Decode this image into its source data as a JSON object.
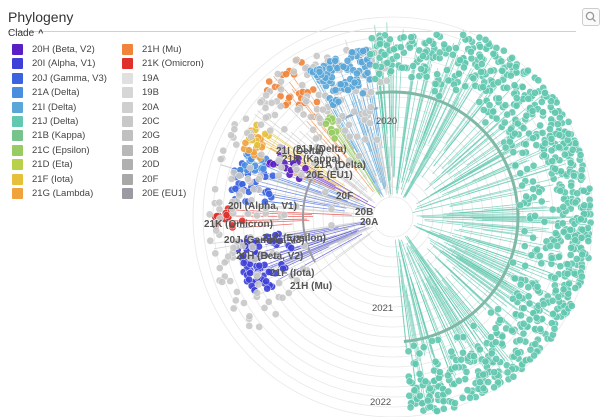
{
  "header": {
    "title": "Phylogeny"
  },
  "legend": {
    "toggle_label": "Clade",
    "items": [
      {
        "label": "20H (Beta, V2)",
        "color": "#5a1fc4"
      },
      {
        "label": "20I (Alpha, V1)",
        "color": "#3d3fd9"
      },
      {
        "label": "20J (Gamma, V3)",
        "color": "#3b63e0"
      },
      {
        "label": "21A (Delta)",
        "color": "#4a8ee0"
      },
      {
        "label": "21I (Delta)",
        "color": "#5aa6d8"
      },
      {
        "label": "21J (Delta)",
        "color": "#62c8b0"
      },
      {
        "label": "21B (Kappa)",
        "color": "#76c48b"
      },
      {
        "label": "21C (Epsilon)",
        "color": "#97cc62"
      },
      {
        "label": "21D (Eta)",
        "color": "#b8d04a"
      },
      {
        "label": "21F (Iota)",
        "color": "#e6c03b"
      },
      {
        "label": "21G (Lambda)",
        "color": "#f0a33d"
      },
      {
        "label": "21H (Mu)",
        "color": "#f0843a"
      },
      {
        "label": "21K (Omicron)",
        "color": "#e0302a"
      },
      {
        "label": "19A",
        "color": "#e0e0e0"
      },
      {
        "label": "19B",
        "color": "#d6d6d6"
      },
      {
        "label": "20A",
        "color": "#cfcfcf"
      },
      {
        "label": "20C",
        "color": "#c8c8c8"
      },
      {
        "label": "20G",
        "color": "#c0c0c0"
      },
      {
        "label": "20B",
        "color": "#b8b8b8"
      },
      {
        "label": "20D",
        "color": "#b0b0b0"
      },
      {
        "label": "20F",
        "color": "#a8a8a8"
      },
      {
        "label": "20E (EU1)",
        "color": "#9a9aa2"
      }
    ]
  },
  "tree": {
    "axis_labels": [
      {
        "text": "2020"
      },
      {
        "text": "2021"
      },
      {
        "text": "2022"
      }
    ],
    "clade_labels": [
      {
        "text": "21I (Delta)"
      },
      {
        "text": "21J (Delta)"
      },
      {
        "text": "21B (Kappa)"
      },
      {
        "text": "21A (Delta)"
      },
      {
        "text": "20E (EU1)"
      },
      {
        "text": "20F"
      },
      {
        "text": "20I (Alpha, V1)"
      },
      {
        "text": "20B"
      },
      {
        "text": "20A"
      },
      {
        "text": "21K (Omicron)"
      },
      {
        "text": "20J (Gamma, V3)"
      },
      {
        "text": "21C (Epsilon)"
      },
      {
        "text": "20H (Beta, V2)"
      },
      {
        "text": "21F (Iota)"
      },
      {
        "text": "21H (Mu)"
      }
    ]
  }
}
